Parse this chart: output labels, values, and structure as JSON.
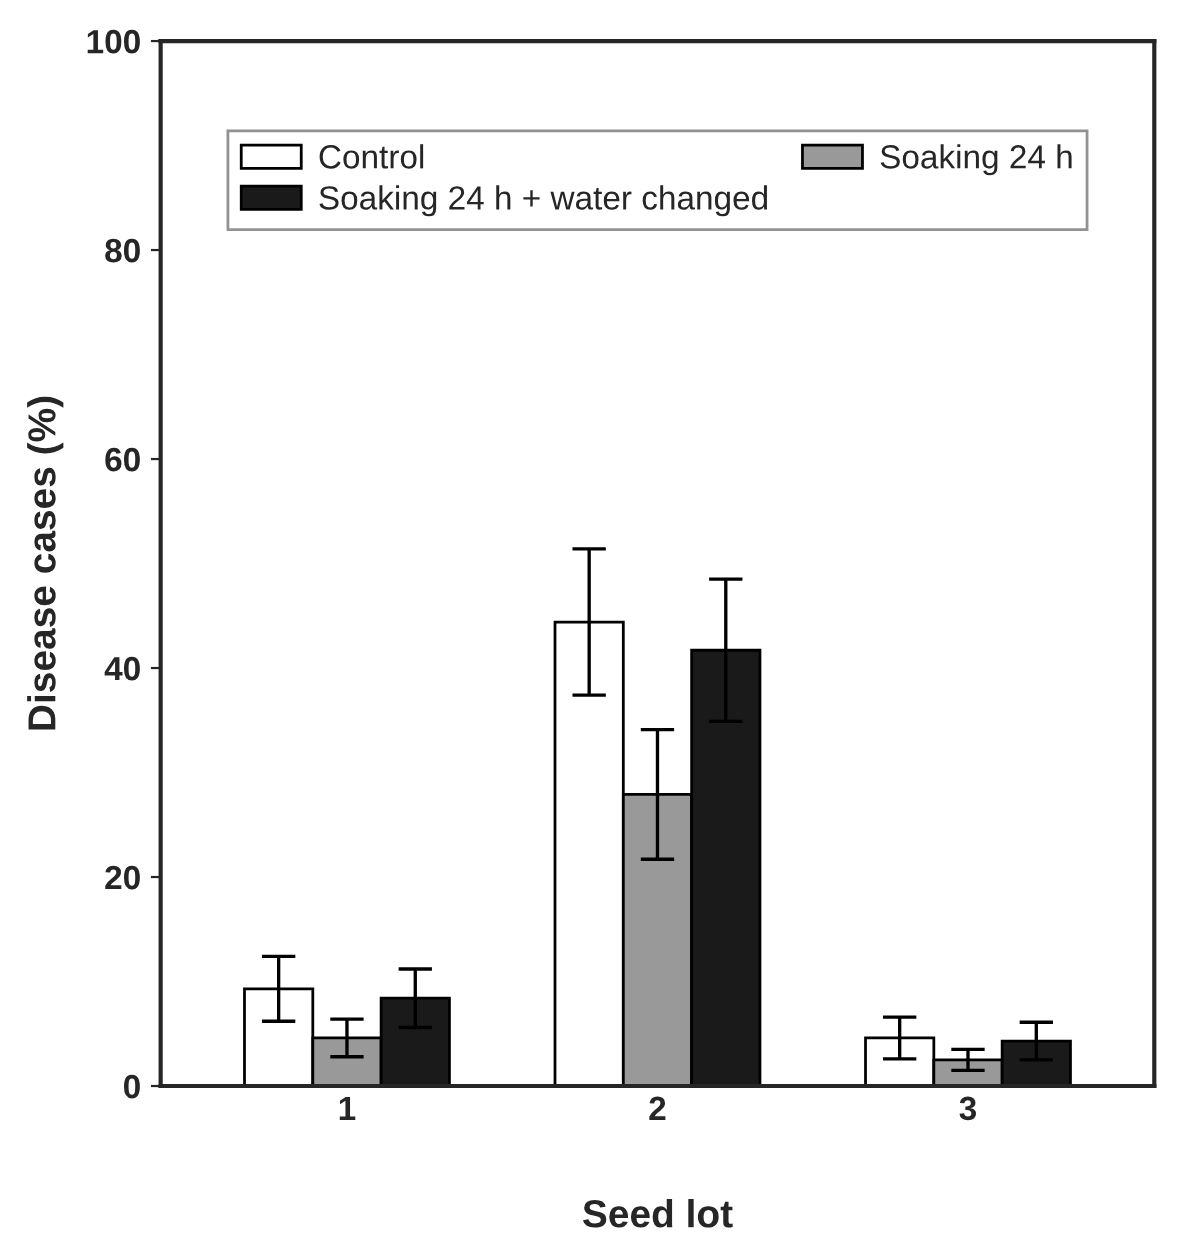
{
  "chart_data": {
    "type": "bar",
    "xlabel": "Seed lot",
    "ylabel": "Disease cases (%)",
    "categories": [
      "1",
      "2",
      "3"
    ],
    "series": [
      {
        "name": "Control",
        "color": "#ffffff",
        "values": [
          9.3,
          44.4,
          4.6
        ],
        "errors": [
          3.1,
          7.0,
          2.0
        ]
      },
      {
        "name": "Soaking 24 h",
        "color": "#999999",
        "values": [
          4.6,
          27.9,
          2.5
        ],
        "errors": [
          1.8,
          6.2,
          1.0
        ]
      },
      {
        "name": "Soaking 24 h + water changed",
        "color": "#1a1a1a",
        "values": [
          8.4,
          41.7,
          4.3
        ],
        "errors": [
          2.8,
          6.8,
          1.8
        ]
      }
    ],
    "ylim": [
      0,
      100
    ],
    "yticks": [
      0,
      20,
      40,
      60,
      80,
      100
    ],
    "grid": false,
    "legend": "top"
  }
}
